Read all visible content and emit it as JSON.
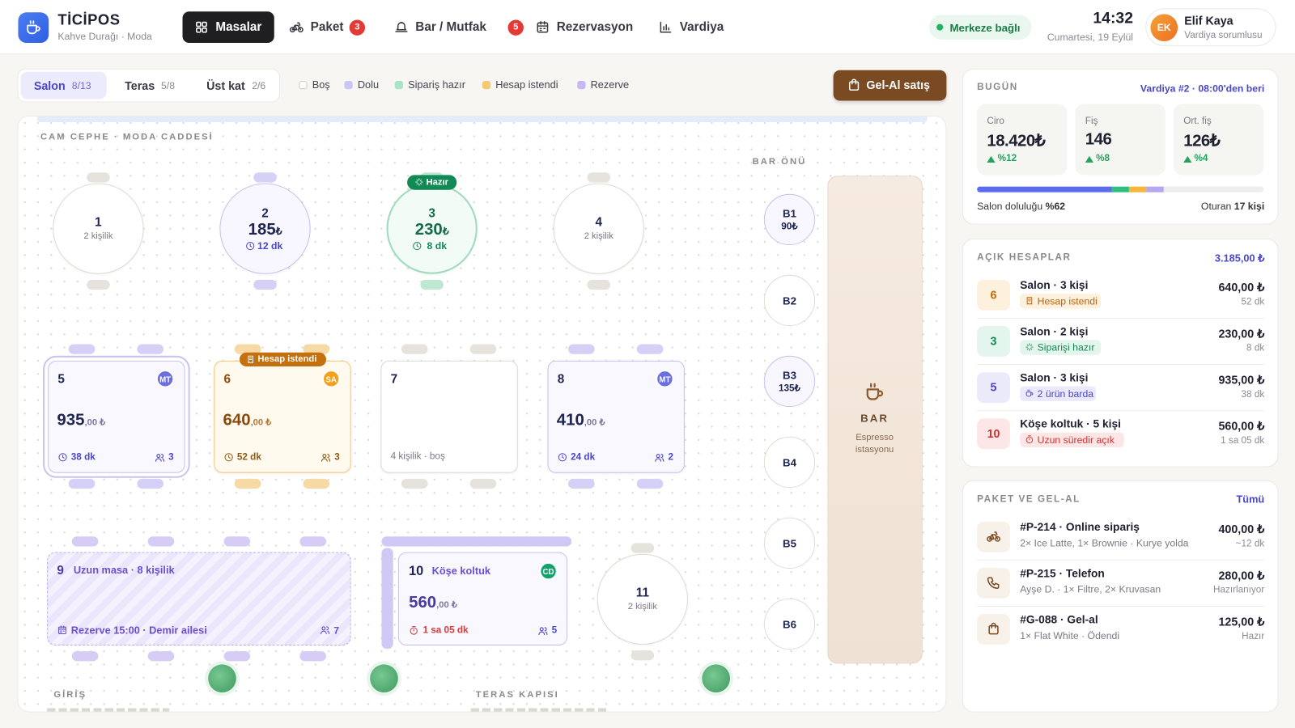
{
  "header": {
    "brand": "TİCİPOS",
    "subtitle": "Kahve Durağı · Moda",
    "nav": [
      {
        "label": "Masalar"
      },
      {
        "label": "Paket",
        "badge": "3"
      },
      {
        "label": "Bar / Mutfak",
        "badge": "5"
      },
      {
        "label": "Rezervasyon"
      },
      {
        "label": "Vardiya"
      }
    ],
    "status": "Merkeze bağlı",
    "time": "14:32",
    "date": "Cumartesi, 19 Eylül",
    "user": {
      "initials": "EK",
      "name": "Elif Kaya",
      "role": "Vardiya sorumlusu"
    }
  },
  "floor": {
    "tabs": [
      {
        "name": "Salon",
        "count": "8/13"
      },
      {
        "name": "Teras",
        "count": "5/8"
      },
      {
        "name": "Üst kat",
        "count": "2/6"
      }
    ],
    "legend": [
      "Boş",
      "Dolu",
      "Sipariş hazır",
      "Hesap istendi",
      "Rezerve"
    ],
    "takeaway_button": "Gel-Al satış",
    "zones": {
      "window": "CAM CEPHE · MODA CADDESİ",
      "bar_front": "BAR ÖNÜ",
      "entrance": "GİRİŞ",
      "terrace_door": "TERAS KAPISI"
    },
    "round_tables": [
      {
        "number": "1",
        "seats": "2 kişilik"
      },
      {
        "number": "2",
        "amount": "185",
        "currency": "₺",
        "time": "12 dk"
      },
      {
        "number": "3",
        "amount": "230",
        "currency": "₺",
        "time": "8 dk",
        "badge": "Hazır"
      },
      {
        "number": "4",
        "seats": "2 kişilik"
      },
      {
        "number": "11",
        "seats": "2 kişilik"
      }
    ],
    "square_tables": [
      {
        "number": "5",
        "waiter": "MT",
        "amount": "935",
        "cents": ",00 ₺",
        "time": "38 dk",
        "guests": "3"
      },
      {
        "number": "6",
        "waiter": "SA",
        "amount": "640",
        "cents": ",00 ₺",
        "time": "52 dk",
        "guests": "3",
        "badge": "Hesap istendi"
      },
      {
        "number": "7",
        "note": "4 kişilik · boş"
      },
      {
        "number": "8",
        "waiter": "MT",
        "amount": "410",
        "cents": ",00 ₺",
        "time": "24 dk",
        "guests": "2"
      }
    ],
    "long_table": {
      "number": "9",
      "title": "Uzun masa · 8 kişilik",
      "reservation": "Rezerve 15:00 · Demir ailesi",
      "guests": "7"
    },
    "corner_table": {
      "number": "10",
      "title": "Köşe koltuk",
      "waiter": "CD",
      "amount": "560",
      "cents": ",00 ₺",
      "time": "1 sa 05 dk",
      "guests": "5"
    },
    "bar_seats": [
      {
        "name": "B1",
        "amount": "90₺"
      },
      {
        "name": "B2"
      },
      {
        "name": "B3",
        "amount": "135₺"
      },
      {
        "name": "B4"
      },
      {
        "name": "B5"
      },
      {
        "name": "B6"
      }
    ],
    "bar": {
      "title": "BAR",
      "subtitle": "Espresso istasyonu"
    }
  },
  "today": {
    "title": "BUGÜN",
    "shift": "Vardiya #2 · 08:00'den beri",
    "stats": [
      {
        "label": "Ciro",
        "value": "18.420₺",
        "change": "%12"
      },
      {
        "label": "Fiş",
        "value": "146",
        "change": "%8"
      },
      {
        "label": "Ort. fiş",
        "value": "126₺",
        "change": "%4"
      }
    ],
    "occupancy_segments": [
      47,
      6,
      6,
      6
    ],
    "occupancy_label": "Salon doluluğu",
    "occupancy_value": "%62",
    "seated_label": "Oturan",
    "seated_value": "17 kişi"
  },
  "open_accounts": {
    "title": "AÇIK HESAPLAR",
    "total": "3.185,00 ₺",
    "items": [
      {
        "table": "6",
        "title": "Salon · 3 kişi",
        "tag": "Hesap istendi",
        "amount": "640,00 ₺",
        "time": "52 dk"
      },
      {
        "table": "3",
        "title": "Salon · 2 kişi",
        "tag": "Siparişi hazır",
        "amount": "230,00 ₺",
        "time": "8 dk"
      },
      {
        "table": "5",
        "title": "Salon · 3 kişi",
        "tag": "2 ürün barda",
        "amount": "935,00 ₺",
        "time": "38 dk"
      },
      {
        "table": "10",
        "title": "Köşe koltuk · 5 kişi",
        "tag": "Uzun süredir açık",
        "amount": "560,00 ₺",
        "time": "1 sa 05 dk"
      }
    ]
  },
  "orders": {
    "title": "PAKET VE GEL-AL",
    "link": "Tümü",
    "items": [
      {
        "title": "#P-214 · Online sipariş",
        "detail": "2× Ice Latte, 1× Brownie · Kurye yolda",
        "amount": "400,00 ₺",
        "status": "~12 dk"
      },
      {
        "title": "#P-215 · Telefon",
        "detail": "Ayşe D. · 1× Filtre, 2× Kruvasan",
        "amount": "280,00 ₺",
        "status": "Hazırlanıyor"
      },
      {
        "title": "#G-088 · Gel-al",
        "detail": "1× Flat White · Ödendi",
        "amount": "125,00 ₺",
        "status": "Hazır"
      }
    ]
  }
}
